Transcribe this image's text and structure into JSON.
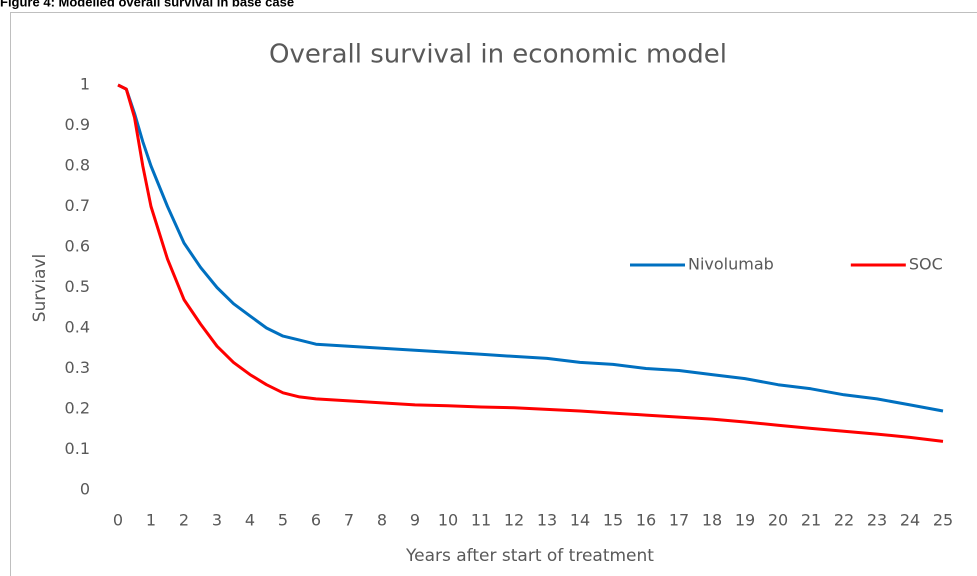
{
  "caption": "Figure 4: Modelled overall survival in base case",
  "chart_data": {
    "type": "line",
    "title": "Overall survival in economic model",
    "xlabel": "Years after start of treatment",
    "ylabel": "Surviavl",
    "x": [
      0,
      0.25,
      0.5,
      0.75,
      1,
      1.5,
      2,
      2.5,
      3,
      3.5,
      4,
      4.5,
      5,
      5.5,
      6,
      7,
      8,
      9,
      10,
      11,
      12,
      13,
      14,
      15,
      16,
      17,
      18,
      19,
      20,
      21,
      22,
      23,
      24,
      25
    ],
    "series": [
      {
        "name": "Nivolumab",
        "color": "#0070c0",
        "values": [
          1,
          0.99,
          0.93,
          0.86,
          0.8,
          0.7,
          0.61,
          0.55,
          0.5,
          0.46,
          0.43,
          0.4,
          0.38,
          0.37,
          0.36,
          0.355,
          0.35,
          0.345,
          0.34,
          0.335,
          0.33,
          0.325,
          0.315,
          0.31,
          0.3,
          0.295,
          0.285,
          0.275,
          0.26,
          0.25,
          0.235,
          0.225,
          0.21,
          0.195
        ]
      },
      {
        "name": "SOC",
        "color": "#ff0000",
        "values": [
          1,
          0.99,
          0.92,
          0.8,
          0.7,
          0.57,
          0.47,
          0.41,
          0.355,
          0.315,
          0.285,
          0.26,
          0.24,
          0.23,
          0.225,
          0.22,
          0.215,
          0.21,
          0.208,
          0.205,
          0.203,
          0.199,
          0.195,
          0.19,
          0.185,
          0.18,
          0.175,
          0.168,
          0.16,
          0.152,
          0.145,
          0.138,
          0.13,
          0.12
        ]
      }
    ],
    "xlim": [
      0,
      25
    ],
    "xticks": [
      0,
      1,
      2,
      3,
      4,
      5,
      6,
      7,
      8,
      9,
      10,
      11,
      12,
      13,
      14,
      15,
      16,
      17,
      18,
      19,
      20,
      21,
      22,
      23,
      24,
      25
    ],
    "ylim": [
      0,
      1
    ],
    "yticks": [
      0,
      0.1,
      0.2,
      0.3,
      0.4,
      0.5,
      0.6,
      0.7,
      0.8,
      0.9,
      1
    ],
    "grid": false,
    "legend": "right"
  }
}
